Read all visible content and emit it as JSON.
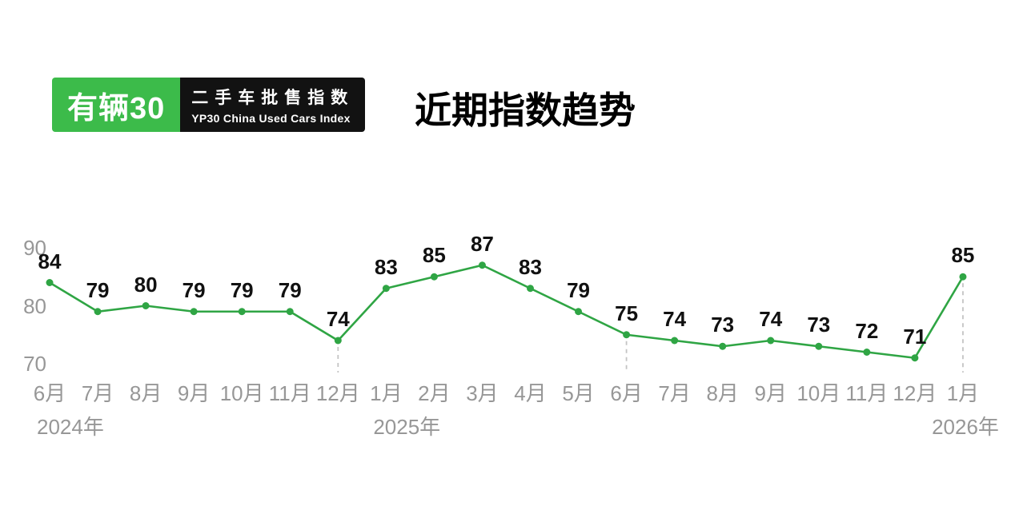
{
  "brand": {
    "logo_text": "有辆30",
    "badge_line1": "二手车批售指数",
    "badge_line2": "YP30 China Used Cars Index"
  },
  "title": "近期指数趋势",
  "colors": {
    "brand_green": "#3cbb4a",
    "brand_black": "#121212",
    "background": "#ffffff",
    "line_green": "#2fa544",
    "axis_gray": "#979797",
    "guide_gray": "#c4c4c4"
  },
  "chart_data": {
    "type": "line",
    "title": "近期指数趋势",
    "x": [
      "6月",
      "7月",
      "8月",
      "9月",
      "10月",
      "11月",
      "12月",
      "1月",
      "2月",
      "3月",
      "4月",
      "5月",
      "6月",
      "7月",
      "8月",
      "9月",
      "10月",
      "11月",
      "12月",
      "1月"
    ],
    "values": [
      84,
      79,
      80,
      79,
      79,
      79,
      74,
      83,
      85,
      87,
      83,
      79,
      75,
      74,
      73,
      74,
      73,
      72,
      71,
      85
    ],
    "ylim": [
      70,
      90
    ],
    "yticks": [
      70,
      80,
      90
    ],
    "ylabel": "",
    "xlabel": "",
    "grid": false,
    "legend": false,
    "line_color": "#2fa544",
    "year_labels": [
      {
        "text": "2024年",
        "index": 0,
        "align": "left"
      },
      {
        "text": "2025年",
        "index": 7,
        "align": "left"
      },
      {
        "text": "2026年",
        "index": 19,
        "align": "right"
      }
    ],
    "dashed_indices": [
      6,
      12,
      19
    ]
  }
}
